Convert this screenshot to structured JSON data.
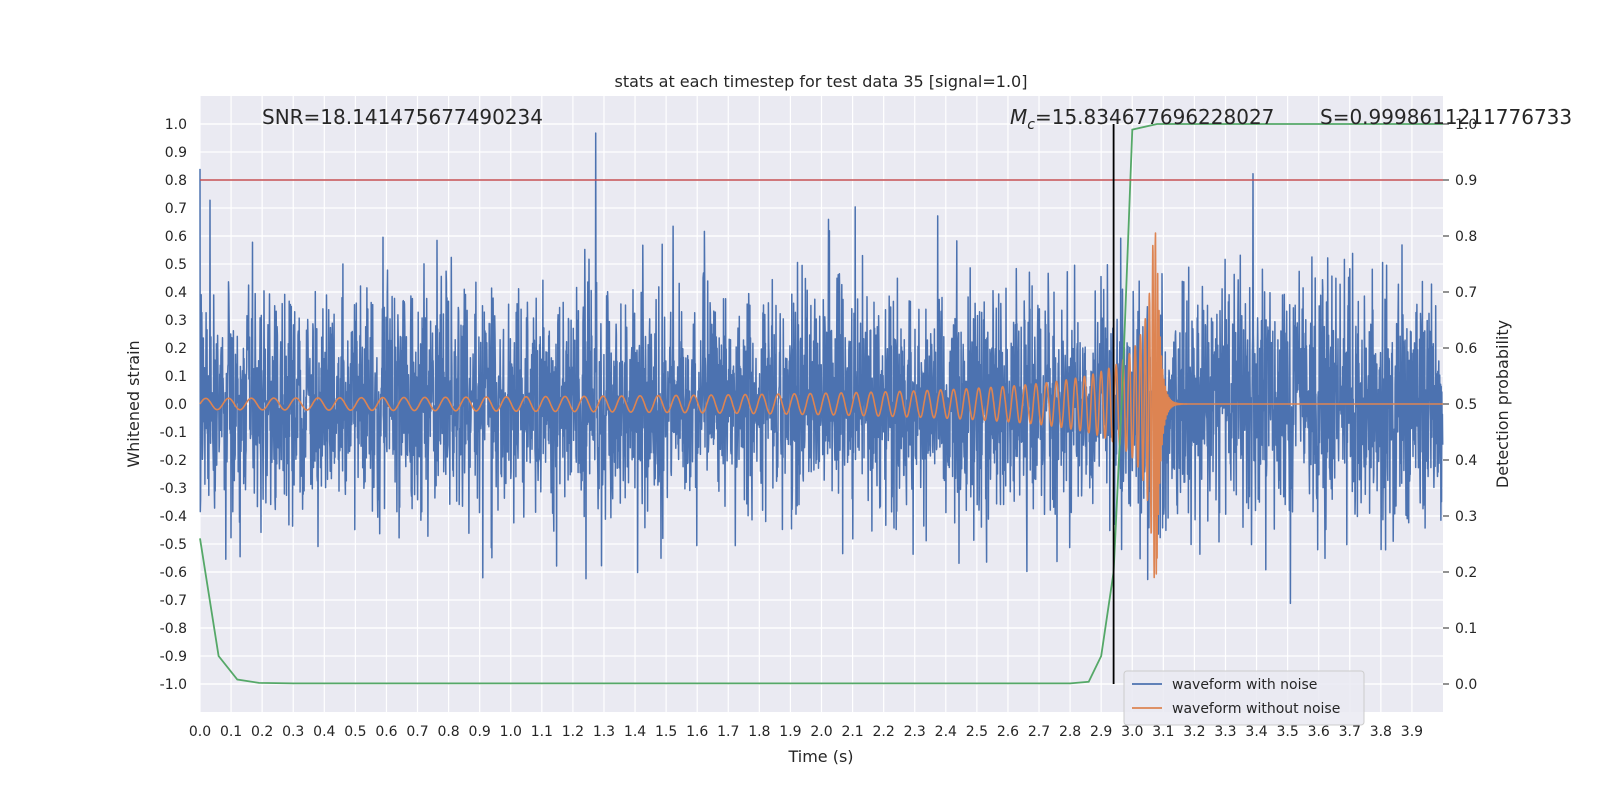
{
  "chart_data": {
    "type": "line",
    "title": "stats at each timestep for test data 35 [signal=1.0]",
    "xlabel": "Time (s)",
    "ylabel_left": "Whitened strain",
    "ylabel_right": "Detection probability",
    "xlim": [
      0.0,
      4.0
    ],
    "ylim_left": [
      -1.1,
      1.1
    ],
    "ylim_right": [
      -0.05,
      1.05
    ],
    "x_ticks": [
      "0.0",
      "0.1",
      "0.2",
      "0.3",
      "0.4",
      "0.5",
      "0.6",
      "0.7",
      "0.8",
      "0.9",
      "1.0",
      "1.1",
      "1.2",
      "1.3",
      "1.4",
      "1.5",
      "1.6",
      "1.7",
      "1.8",
      "1.9",
      "2.0",
      "2.1",
      "2.2",
      "2.3",
      "2.4",
      "2.5",
      "2.6",
      "2.7",
      "2.8",
      "2.9",
      "3.0",
      "3.1",
      "3.2",
      "3.3",
      "3.4",
      "3.5",
      "3.6",
      "3.7",
      "3.8",
      "3.9"
    ],
    "y_ticks_left": [
      "1.0",
      "0.9",
      "0.8",
      "0.7",
      "0.6",
      "0.5",
      "0.4",
      "0.3",
      "0.2",
      "0.1",
      "0.0",
      "-0.1",
      "-0.2",
      "-0.3",
      "-0.4",
      "-0.5",
      "-0.6",
      "-0.7",
      "-0.8",
      "-0.9",
      "-1.0"
    ],
    "y_ticks_right": [
      "1.0",
      "0.9",
      "0.8",
      "0.7",
      "0.6",
      "0.5",
      "0.4",
      "0.3",
      "0.2",
      "0.1",
      "0.0"
    ],
    "annotations": {
      "snr": "SNR=18.141475677490234",
      "mc_symbol": "M",
      "mc_subscript": "c",
      "mc_value": "=15.834677696228027",
      "s": "S=0.9998611211776733"
    },
    "threshold_right": 0.9,
    "merger_time": 2.94,
    "noise_seed": 35,
    "series": [
      {
        "name": "waveform with noise",
        "color": "#4c72b0",
        "kind": "noise",
        "n_samples": 4096,
        "amplitude_std": 0.2
      },
      {
        "name": "waveform without noise",
        "color": "#dd8452",
        "kind": "chirp",
        "f_start": 13.5,
        "t_coalesce": 3.08,
        "amp_start": 0.02,
        "amp_peak": 0.62
      },
      {
        "name": "detection probability",
        "color": "#55a868",
        "kind": "probability",
        "axis": "right",
        "x": [
          0.0,
          0.06,
          0.12,
          0.19,
          0.3,
          1.0,
          2.0,
          2.8,
          2.86,
          2.9,
          2.94,
          2.97,
          3.0,
          3.08,
          4.0
        ],
        "y": [
          0.26,
          0.05,
          0.008,
          0.002,
          0.001,
          0.001,
          0.001,
          0.001,
          0.004,
          0.05,
          0.2,
          0.55,
          0.99,
          1.0,
          1.0
        ]
      }
    ],
    "legend": {
      "position": "lower-right",
      "entries": [
        "waveform with noise",
        "waveform without noise"
      ]
    },
    "colors": {
      "background": "#eaeaf2",
      "grid": "#ffffff",
      "threshold": "#c44e52",
      "merger": "#000000"
    }
  }
}
